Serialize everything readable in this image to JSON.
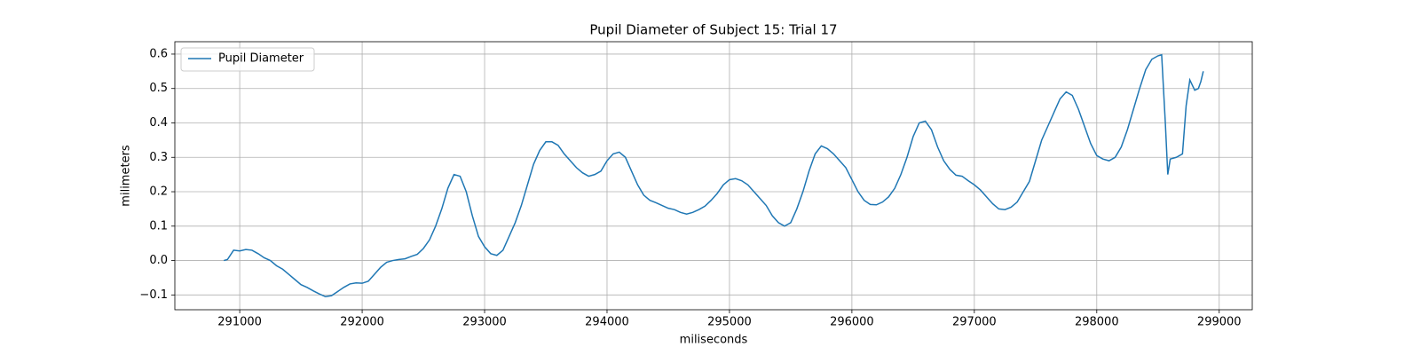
{
  "chart_data": {
    "type": "line",
    "title": "Pupil Diameter of Subject 15: Trial 17",
    "x_label": "miliseconds",
    "y_label": "milimeters",
    "x": [
      290870,
      290900,
      290950,
      291000,
      291050,
      291100,
      291150,
      291200,
      291250,
      291300,
      291350,
      291400,
      291450,
      291500,
      291550,
      291600,
      291650,
      291700,
      291750,
      291800,
      291850,
      291900,
      291950,
      292000,
      292050,
      292100,
      292150,
      292200,
      292250,
      292300,
      292350,
      292400,
      292450,
      292500,
      292550,
      292600,
      292650,
      292700,
      292750,
      292800,
      292850,
      292900,
      292950,
      293000,
      293050,
      293100,
      293150,
      293200,
      293250,
      293300,
      293350,
      293400,
      293450,
      293500,
      293550,
      293600,
      293650,
      293700,
      293750,
      293800,
      293850,
      293900,
      293950,
      294000,
      294050,
      294100,
      294150,
      294200,
      294250,
      294300,
      294350,
      294400,
      294450,
      294500,
      294550,
      294600,
      294650,
      294700,
      294750,
      294800,
      294850,
      294900,
      294950,
      295000,
      295050,
      295100,
      295150,
      295200,
      295250,
      295300,
      295350,
      295400,
      295450,
      295500,
      295550,
      295600,
      295650,
      295700,
      295750,
      295800,
      295850,
      295900,
      295950,
      296000,
      296050,
      296100,
      296150,
      296200,
      296250,
      296300,
      296350,
      296400,
      296450,
      296500,
      296550,
      296600,
      296650,
      296700,
      296750,
      296800,
      296850,
      296900,
      296950,
      297000,
      297050,
      297100,
      297150,
      297200,
      297250,
      297300,
      297350,
      297400,
      297450,
      297500,
      297550,
      297600,
      297650,
      297700,
      297750,
      297800,
      297850,
      297900,
      297950,
      298000,
      298050,
      298100,
      298150,
      298200,
      298250,
      298300,
      298350,
      298400,
      298450,
      298500,
      298530,
      298560,
      298580,
      298600,
      298650,
      298700,
      298730,
      298760,
      298800,
      298830,
      298850,
      298870
    ],
    "series": [
      {
        "name": "Pupil Diameter",
        "color": "#1f77b4",
        "values": [
          0.0,
          0.003,
          0.03,
          0.028,
          0.032,
          0.03,
          0.02,
          0.008,
          0.0,
          -0.015,
          -0.025,
          -0.04,
          -0.055,
          -0.07,
          -0.078,
          -0.088,
          -0.097,
          -0.105,
          -0.102,
          -0.09,
          -0.078,
          -0.068,
          -0.065,
          -0.066,
          -0.06,
          -0.04,
          -0.02,
          -0.005,
          0.0,
          0.003,
          0.005,
          0.012,
          0.018,
          0.035,
          0.06,
          0.1,
          0.15,
          0.21,
          0.25,
          0.245,
          0.2,
          0.13,
          0.07,
          0.04,
          0.02,
          0.015,
          0.03,
          0.07,
          0.11,
          0.16,
          0.22,
          0.28,
          0.32,
          0.345,
          0.345,
          0.335,
          0.31,
          0.29,
          0.27,
          0.255,
          0.245,
          0.25,
          0.26,
          0.29,
          0.31,
          0.315,
          0.3,
          0.26,
          0.22,
          0.19,
          0.175,
          0.168,
          0.16,
          0.152,
          0.148,
          0.14,
          0.135,
          0.14,
          0.148,
          0.158,
          0.175,
          0.195,
          0.22,
          0.235,
          0.238,
          0.232,
          0.22,
          0.2,
          0.18,
          0.16,
          0.13,
          0.11,
          0.1,
          0.11,
          0.15,
          0.2,
          0.26,
          0.31,
          0.333,
          0.325,
          0.31,
          0.29,
          0.27,
          0.235,
          0.2,
          0.175,
          0.163,
          0.162,
          0.17,
          0.185,
          0.21,
          0.25,
          0.3,
          0.36,
          0.4,
          0.405,
          0.38,
          0.33,
          0.29,
          0.265,
          0.248,
          0.245,
          0.232,
          0.22,
          0.205,
          0.185,
          0.165,
          0.15,
          0.148,
          0.155,
          0.17,
          0.2,
          0.23,
          0.29,
          0.35,
          0.39,
          0.43,
          0.47,
          0.49,
          0.48,
          0.44,
          0.39,
          0.34,
          0.305,
          0.295,
          0.29,
          0.3,
          0.33,
          0.38,
          0.44,
          0.5,
          0.555,
          0.585,
          0.595,
          0.598,
          0.4,
          0.25,
          0.295,
          0.3,
          0.31,
          0.45,
          0.525,
          0.495,
          0.5,
          0.52,
          0.55
        ]
      }
    ],
    "xlim": [
      290470,
      299270
    ],
    "ylim": [
      -0.143,
      0.636
    ],
    "xticks": [
      291000,
      292000,
      293000,
      294000,
      295000,
      296000,
      297000,
      298000,
      299000
    ],
    "yticks": [
      {
        "value": -0.1,
        "label": "−0.1"
      },
      {
        "value": 0,
        "label": "0.0"
      },
      0.1,
      0.2,
      0.3,
      0.4,
      0.5,
      0.6
    ],
    "grid": true,
    "legend": "upper left"
  }
}
